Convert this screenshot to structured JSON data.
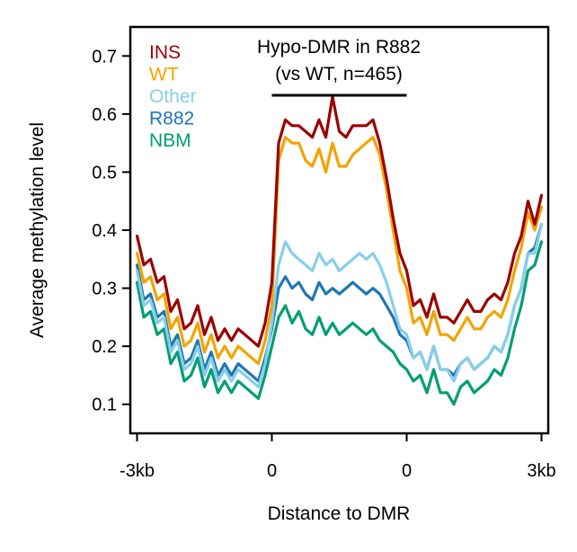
{
  "chart_data": {
    "type": "line",
    "title": "Hypo-DMR in R882",
    "subtitle": "(vs WT, n=465)",
    "xlabel": "Distance to DMR",
    "ylabel": "Average methylation level",
    "ylim": [
      0.05,
      0.75
    ],
    "yticks": [
      0.1,
      0.2,
      0.3,
      0.4,
      0.5,
      0.6,
      0.7
    ],
    "ytick_labels": [
      "0.1",
      "0.2",
      "0.3",
      "0.4",
      "0.5",
      "0.6",
      "0.7"
    ],
    "xticks": [
      -1,
      0,
      1,
      2
    ],
    "xtick_labels": [
      "-3kb",
      "0",
      "0",
      "3kb"
    ],
    "xlim": [
      -1.05,
      2.05
    ],
    "dmr_region": [
      0,
      1
    ],
    "legend_position": "top-left",
    "grid": false,
    "series": [
      {
        "name": "INS",
        "color": "#9b0000",
        "x": [
          -1.0,
          -0.95,
          -0.9,
          -0.85,
          -0.8,
          -0.75,
          -0.7,
          -0.65,
          -0.6,
          -0.55,
          -0.5,
          -0.45,
          -0.4,
          -0.35,
          -0.3,
          -0.25,
          -0.2,
          -0.15,
          -0.1,
          -0.05,
          0.0,
          0.05,
          0.1,
          0.15,
          0.2,
          0.25,
          0.3,
          0.35,
          0.4,
          0.45,
          0.5,
          0.55,
          0.6,
          0.65,
          0.7,
          0.75,
          0.8,
          0.85,
          0.9,
          0.95,
          1.0,
          1.05,
          1.1,
          1.15,
          1.2,
          1.25,
          1.3,
          1.35,
          1.4,
          1.45,
          1.5,
          1.55,
          1.6,
          1.65,
          1.7,
          1.75,
          1.8,
          1.85,
          1.9,
          1.95,
          2.0
        ],
        "y": [
          0.39,
          0.34,
          0.35,
          0.31,
          0.32,
          0.26,
          0.28,
          0.23,
          0.24,
          0.27,
          0.22,
          0.25,
          0.21,
          0.23,
          0.21,
          0.23,
          0.22,
          0.21,
          0.2,
          0.24,
          0.31,
          0.55,
          0.59,
          0.58,
          0.58,
          0.57,
          0.56,
          0.59,
          0.56,
          0.63,
          0.57,
          0.56,
          0.58,
          0.58,
          0.58,
          0.59,
          0.55,
          0.49,
          0.42,
          0.36,
          0.33,
          0.27,
          0.28,
          0.25,
          0.29,
          0.25,
          0.25,
          0.24,
          0.26,
          0.28,
          0.26,
          0.26,
          0.28,
          0.29,
          0.28,
          0.31,
          0.36,
          0.39,
          0.45,
          0.41,
          0.46
        ]
      },
      {
        "name": "WT",
        "color": "#f4a300",
        "x": [
          -1.0,
          -0.95,
          -0.9,
          -0.85,
          -0.8,
          -0.75,
          -0.7,
          -0.65,
          -0.6,
          -0.55,
          -0.5,
          -0.45,
          -0.4,
          -0.35,
          -0.3,
          -0.25,
          -0.2,
          -0.15,
          -0.1,
          -0.05,
          0.0,
          0.05,
          0.1,
          0.15,
          0.2,
          0.25,
          0.3,
          0.35,
          0.4,
          0.45,
          0.5,
          0.55,
          0.6,
          0.65,
          0.7,
          0.75,
          0.8,
          0.85,
          0.9,
          0.95,
          1.0,
          1.05,
          1.1,
          1.15,
          1.2,
          1.25,
          1.3,
          1.35,
          1.4,
          1.45,
          1.5,
          1.55,
          1.6,
          1.65,
          1.7,
          1.75,
          1.8,
          1.85,
          1.9,
          1.95,
          2.0
        ],
        "y": [
          0.36,
          0.31,
          0.32,
          0.28,
          0.29,
          0.23,
          0.25,
          0.2,
          0.21,
          0.24,
          0.19,
          0.22,
          0.18,
          0.2,
          0.18,
          0.2,
          0.19,
          0.18,
          0.17,
          0.21,
          0.27,
          0.52,
          0.56,
          0.55,
          0.55,
          0.52,
          0.51,
          0.54,
          0.5,
          0.55,
          0.51,
          0.51,
          0.53,
          0.54,
          0.55,
          0.56,
          0.53,
          0.47,
          0.4,
          0.33,
          0.3,
          0.24,
          0.25,
          0.22,
          0.26,
          0.22,
          0.22,
          0.21,
          0.23,
          0.25,
          0.23,
          0.23,
          0.25,
          0.26,
          0.25,
          0.28,
          0.33,
          0.37,
          0.43,
          0.4,
          0.44
        ]
      },
      {
        "name": "Other",
        "color": "#87ceeb",
        "x": [
          -1.0,
          -0.95,
          -0.9,
          -0.85,
          -0.8,
          -0.75,
          -0.7,
          -0.65,
          -0.6,
          -0.55,
          -0.5,
          -0.45,
          -0.4,
          -0.35,
          -0.3,
          -0.25,
          -0.2,
          -0.15,
          -0.1,
          -0.05,
          0.0,
          0.05,
          0.1,
          0.15,
          0.2,
          0.25,
          0.3,
          0.35,
          0.4,
          0.45,
          0.5,
          0.55,
          0.6,
          0.65,
          0.7,
          0.75,
          0.8,
          0.85,
          0.9,
          0.95,
          1.0,
          1.05,
          1.1,
          1.15,
          1.2,
          1.25,
          1.3,
          1.35,
          1.4,
          1.45,
          1.5,
          1.55,
          1.6,
          1.65,
          1.7,
          1.75,
          1.8,
          1.85,
          1.9,
          1.95,
          2.0
        ],
        "y": [
          0.33,
          0.27,
          0.28,
          0.24,
          0.25,
          0.19,
          0.21,
          0.16,
          0.17,
          0.2,
          0.15,
          0.18,
          0.14,
          0.16,
          0.14,
          0.16,
          0.15,
          0.14,
          0.13,
          0.17,
          0.24,
          0.34,
          0.38,
          0.36,
          0.35,
          0.34,
          0.33,
          0.36,
          0.34,
          0.35,
          0.33,
          0.34,
          0.35,
          0.36,
          0.35,
          0.36,
          0.34,
          0.31,
          0.27,
          0.23,
          0.22,
          0.18,
          0.19,
          0.16,
          0.2,
          0.16,
          0.16,
          0.14,
          0.17,
          0.18,
          0.16,
          0.17,
          0.18,
          0.2,
          0.19,
          0.22,
          0.27,
          0.3,
          0.36,
          0.36,
          0.41
        ]
      },
      {
        "name": "R882",
        "color": "#1f77b4",
        "x": [
          -1.0,
          -0.95,
          -0.9,
          -0.85,
          -0.8,
          -0.75,
          -0.7,
          -0.65,
          -0.6,
          -0.55,
          -0.5,
          -0.45,
          -0.4,
          -0.35,
          -0.3,
          -0.25,
          -0.2,
          -0.15,
          -0.1,
          -0.05,
          0.0,
          0.05,
          0.1,
          0.15,
          0.2,
          0.25,
          0.3,
          0.35,
          0.4,
          0.45,
          0.5,
          0.55,
          0.6,
          0.65,
          0.7,
          0.75,
          0.8,
          0.85,
          0.9,
          0.95,
          1.0,
          1.05,
          1.1,
          1.15,
          1.2,
          1.25,
          1.3,
          1.35,
          1.4,
          1.45,
          1.5,
          1.55,
          1.6,
          1.65,
          1.7,
          1.75,
          1.8,
          1.85,
          1.9,
          1.95,
          2.0
        ],
        "y": [
          0.34,
          0.28,
          0.29,
          0.25,
          0.26,
          0.2,
          0.22,
          0.17,
          0.18,
          0.21,
          0.16,
          0.19,
          0.15,
          0.17,
          0.15,
          0.17,
          0.16,
          0.15,
          0.14,
          0.18,
          0.23,
          0.3,
          0.32,
          0.3,
          0.31,
          0.29,
          0.28,
          0.31,
          0.29,
          0.3,
          0.29,
          0.3,
          0.31,
          0.3,
          0.29,
          0.3,
          0.29,
          0.27,
          0.25,
          0.22,
          0.21,
          0.18,
          0.19,
          0.16,
          0.2,
          0.16,
          0.16,
          0.15,
          0.17,
          0.18,
          0.16,
          0.17,
          0.18,
          0.2,
          0.19,
          0.22,
          0.27,
          0.3,
          0.36,
          0.37,
          0.41
        ]
      },
      {
        "name": "NBM",
        "color": "#009e73",
        "x": [
          -1.0,
          -0.95,
          -0.9,
          -0.85,
          -0.8,
          -0.75,
          -0.7,
          -0.65,
          -0.6,
          -0.55,
          -0.5,
          -0.45,
          -0.4,
          -0.35,
          -0.3,
          -0.25,
          -0.2,
          -0.15,
          -0.1,
          -0.05,
          0.0,
          0.05,
          0.1,
          0.15,
          0.2,
          0.25,
          0.3,
          0.35,
          0.4,
          0.45,
          0.5,
          0.55,
          0.6,
          0.65,
          0.7,
          0.75,
          0.8,
          0.85,
          0.9,
          0.95,
          1.0,
          1.05,
          1.1,
          1.15,
          1.2,
          1.25,
          1.3,
          1.35,
          1.4,
          1.45,
          1.5,
          1.55,
          1.6,
          1.65,
          1.7,
          1.75,
          1.8,
          1.85,
          1.9,
          1.95,
          2.0
        ],
        "y": [
          0.31,
          0.25,
          0.26,
          0.22,
          0.23,
          0.17,
          0.19,
          0.14,
          0.15,
          0.18,
          0.13,
          0.16,
          0.12,
          0.14,
          0.12,
          0.14,
          0.13,
          0.12,
          0.11,
          0.15,
          0.2,
          0.25,
          0.27,
          0.24,
          0.26,
          0.23,
          0.22,
          0.25,
          0.22,
          0.24,
          0.22,
          0.23,
          0.24,
          0.23,
          0.22,
          0.23,
          0.21,
          0.2,
          0.19,
          0.17,
          0.16,
          0.14,
          0.15,
          0.12,
          0.16,
          0.12,
          0.12,
          0.1,
          0.13,
          0.14,
          0.12,
          0.13,
          0.14,
          0.16,
          0.15,
          0.18,
          0.23,
          0.27,
          0.33,
          0.34,
          0.38
        ]
      }
    ]
  }
}
